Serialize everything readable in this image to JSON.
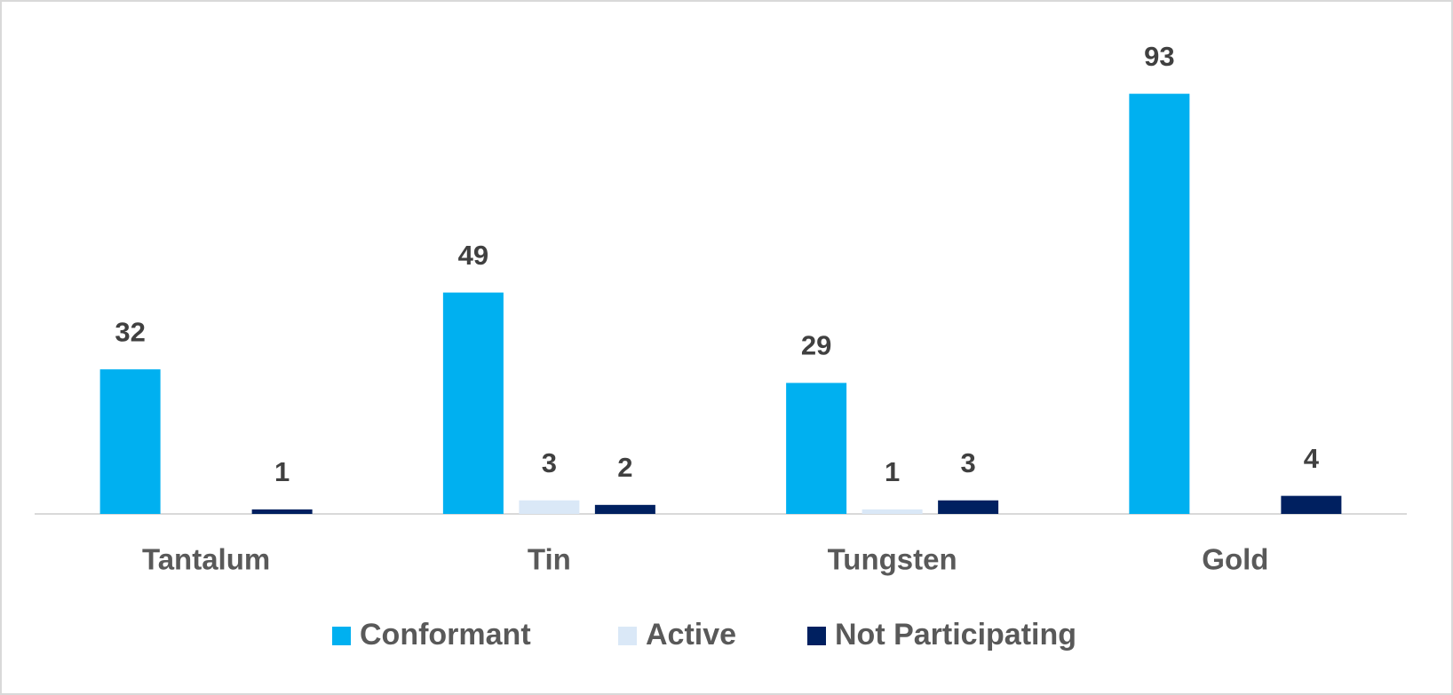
{
  "chart_data": {
    "type": "bar",
    "categories": [
      "Tantalum",
      "Tin",
      "Tungsten",
      "Gold"
    ],
    "series": [
      {
        "name": "Conformant",
        "color": "#00b0f0",
        "values": [
          32,
          49,
          29,
          93
        ]
      },
      {
        "name": "Active",
        "color": "#dae8f7",
        "values": [
          null,
          3,
          1,
          null
        ]
      },
      {
        "name": "Not Participating",
        "color": "#002060",
        "values": [
          1,
          2,
          3,
          4
        ]
      }
    ],
    "ylim": [
      0,
      100
    ],
    "grid": false
  }
}
